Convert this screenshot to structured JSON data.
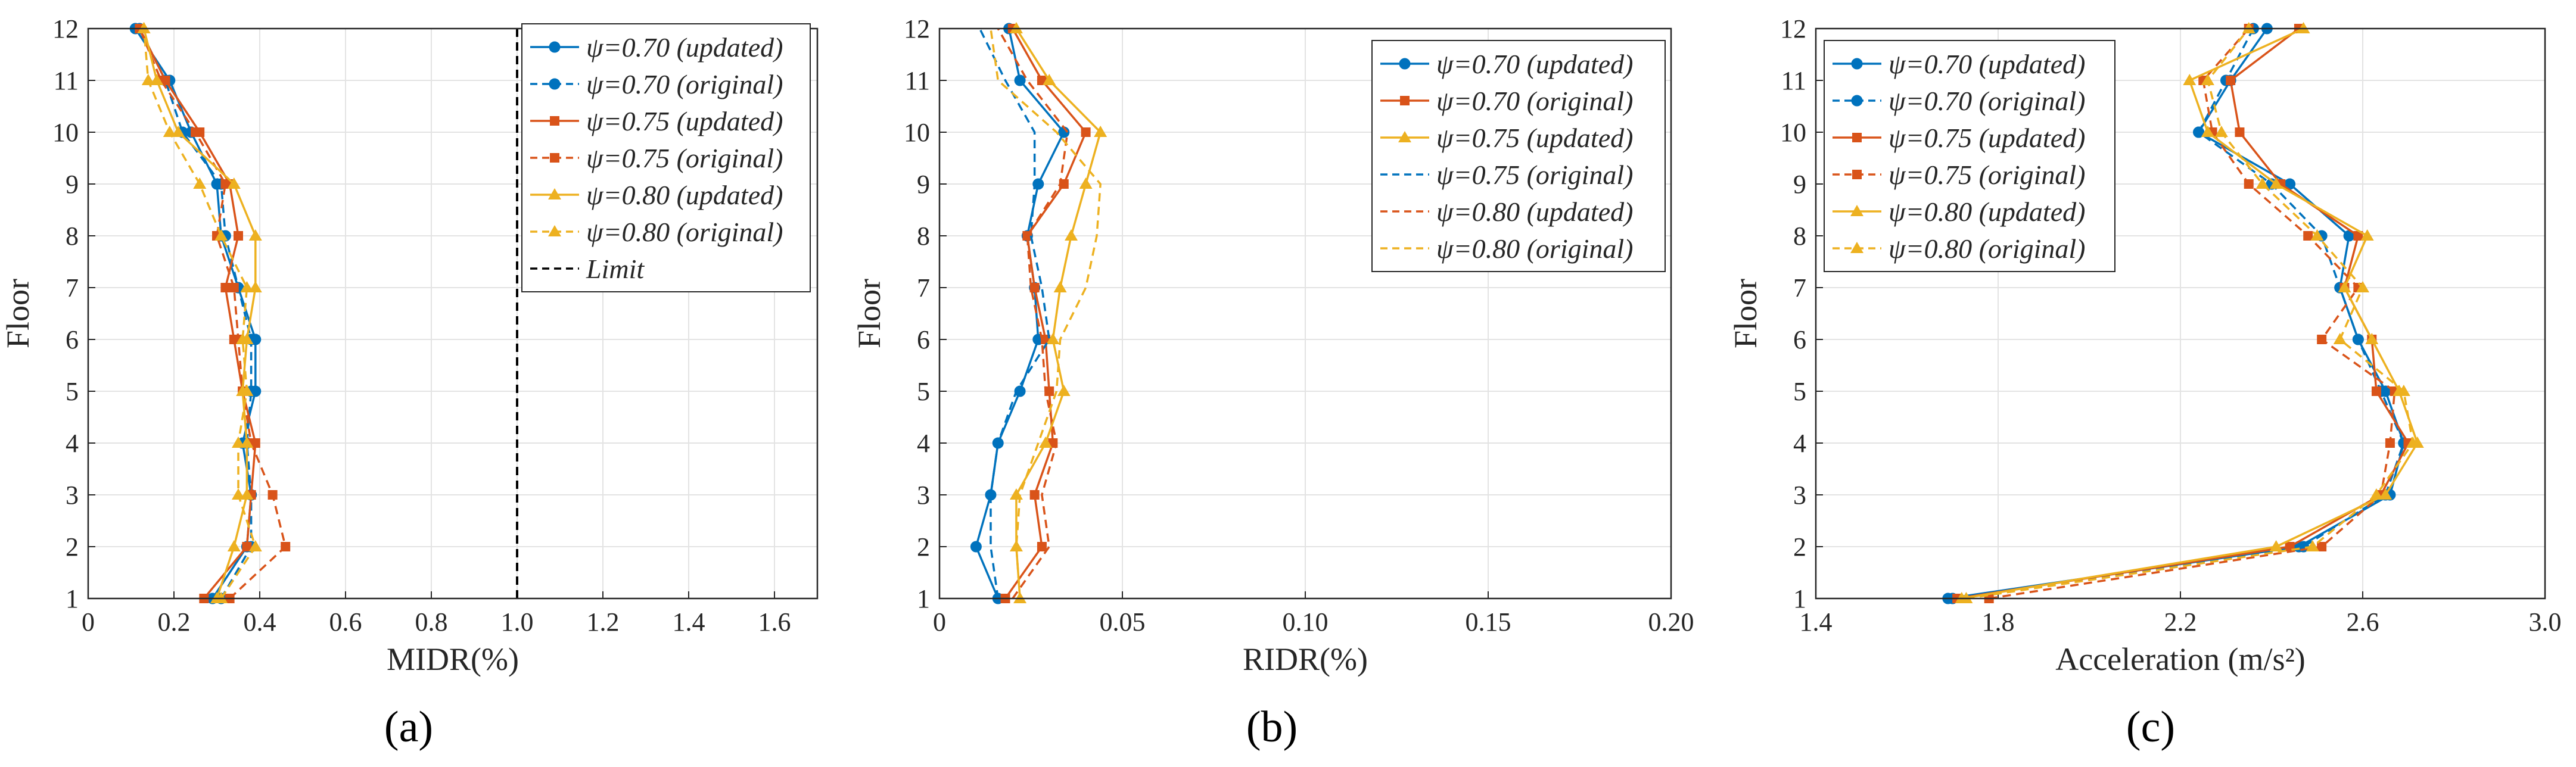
{
  "figure_labels": [
    "(a)",
    "(b)",
    "(c)"
  ],
  "chart_data": [
    {
      "type": "line",
      "panel": "(a)",
      "xlabel": "MIDR(%)",
      "ylabel": "Floor",
      "xlim": [
        0,
        1.7
      ],
      "ylim": [
        1,
        12
      ],
      "xticks": [
        0,
        0.2,
        0.4,
        0.6,
        0.8,
        1.0,
        1.2,
        1.4,
        1.6
      ],
      "xtick_labels": [
        "0",
        "0.2",
        "0.4",
        "0.6",
        "0.8",
        "1.0",
        "1.2",
        "1.4",
        "1.6"
      ],
      "yticks": [
        1,
        2,
        3,
        4,
        5,
        6,
        7,
        8,
        9,
        10,
        11,
        12
      ],
      "ytick_labels": [
        "1",
        "2",
        "3",
        "4",
        "5",
        "6",
        "7",
        "8",
        "9",
        "10",
        "11",
        "12"
      ],
      "grid": true,
      "legend_position": "top-right",
      "series": [
        {
          "name": "ψ=0.70 (updated)",
          "color": "#0072BD",
          "dash": "solid",
          "marker": "circle",
          "x": [
            0.29,
            0.37,
            0.38,
            0.36,
            0.39,
            0.39,
            0.35,
            0.31,
            0.3,
            0.24,
            0.19,
            0.11
          ],
          "y": [
            1,
            2,
            3,
            4,
            5,
            6,
            7,
            8,
            9,
            10,
            11,
            12
          ]
        },
        {
          "name": "ψ=0.70 (original)",
          "color": "#0072BD",
          "dash": "dashed",
          "marker": "circle",
          "x": [
            0.31,
            0.38,
            0.38,
            0.37,
            0.38,
            0.38,
            0.35,
            0.32,
            0.31,
            0.22,
            0.18,
            0.12
          ],
          "y": [
            1,
            2,
            3,
            4,
            5,
            6,
            7,
            8,
            9,
            10,
            11,
            12
          ]
        },
        {
          "name": "ψ=0.75 (updated)",
          "color": "#D95319",
          "dash": "solid",
          "marker": "square",
          "x": [
            0.27,
            0.37,
            0.38,
            0.39,
            0.36,
            0.34,
            0.32,
            0.35,
            0.33,
            0.26,
            0.18,
            0.12
          ],
          "y": [
            1,
            2,
            3,
            4,
            5,
            6,
            7,
            8,
            9,
            10,
            11,
            12
          ]
        },
        {
          "name": "ψ=0.75 (original)",
          "color": "#D95319",
          "dash": "dashed",
          "marker": "square",
          "x": [
            0.33,
            0.46,
            0.43,
            0.38,
            0.36,
            0.35,
            0.34,
            0.3,
            0.32,
            0.25,
            0.17,
            0.12
          ],
          "y": [
            1,
            2,
            3,
            4,
            5,
            6,
            7,
            8,
            9,
            10,
            11,
            12
          ]
        },
        {
          "name": "ψ=0.80 (updated)",
          "color": "#EDB120",
          "dash": "solid",
          "marker": "triangle",
          "x": [
            0.3,
            0.34,
            0.37,
            0.37,
            0.36,
            0.37,
            0.39,
            0.39,
            0.34,
            0.21,
            0.16,
            0.13
          ],
          "y": [
            1,
            2,
            3,
            4,
            5,
            6,
            7,
            8,
            9,
            10,
            11,
            12
          ]
        },
        {
          "name": "ψ=0.80 (original)",
          "color": "#EDB120",
          "dash": "dashed",
          "marker": "triangle",
          "x": [
            0.31,
            0.39,
            0.35,
            0.35,
            0.37,
            0.36,
            0.37,
            0.31,
            0.26,
            0.19,
            0.14,
            0.13
          ],
          "y": [
            1,
            2,
            3,
            4,
            5,
            6,
            7,
            8,
            9,
            10,
            11,
            12
          ]
        },
        {
          "name": "Limit",
          "color": "#000000",
          "dash": "dashed",
          "marker": "none",
          "x": [
            1.0,
            1.0
          ],
          "y": [
            1,
            12
          ]
        }
      ]
    },
    {
      "type": "line",
      "panel": "(b)",
      "xlabel": "RIDR(%)",
      "ylabel": "Floor",
      "xlim": [
        0,
        0.2
      ],
      "ylim": [
        1,
        12
      ],
      "xticks": [
        0,
        0.05,
        0.1,
        0.15,
        0.2
      ],
      "xtick_labels": [
        "0",
        "0.05",
        "0.10",
        "0.15",
        "0.20"
      ],
      "yticks": [
        1,
        2,
        3,
        4,
        5,
        6,
        7,
        8,
        9,
        10,
        11,
        12
      ],
      "ytick_labels": [
        "1",
        "2",
        "3",
        "4",
        "5",
        "6",
        "7",
        "8",
        "9",
        "10",
        "11",
        "12"
      ],
      "grid": true,
      "legend_position": "top-right",
      "series": [
        {
          "name": "ψ=0.70 (updated)",
          "color": "#0072BD",
          "dash": "solid",
          "marker": "circle",
          "x": [
            0.016,
            0.01,
            0.014,
            0.016,
            0.022,
            0.027,
            0.026,
            0.024,
            0.027,
            0.034,
            0.022,
            0.019
          ],
          "y": [
            1,
            2,
            3,
            4,
            5,
            6,
            7,
            8,
            9,
            10,
            11,
            12
          ]
        },
        {
          "name": "ψ=0.70 (original)",
          "color": "#D95319",
          "dash": "solid",
          "marker": "square",
          "x": [
            0.018,
            0.028,
            0.026,
            0.031,
            0.03,
            0.029,
            0.026,
            0.024,
            0.034,
            0.04,
            0.028,
            0.02
          ],
          "y": [
            1,
            2,
            3,
            4,
            5,
            6,
            7,
            8,
            9,
            10,
            11,
            12
          ]
        },
        {
          "name": "ψ=0.75 (updated)",
          "color": "#EDB120",
          "dash": "solid",
          "marker": "triangle",
          "x": [
            0.022,
            0.021,
            0.021,
            0.029,
            0.034,
            0.031,
            0.033,
            0.036,
            0.04,
            0.044,
            0.03,
            0.021
          ],
          "y": [
            1,
            2,
            3,
            4,
            5,
            6,
            7,
            8,
            9,
            10,
            11,
            12
          ]
        },
        {
          "name": "ψ=0.75 (original)",
          "color": "#0072BD",
          "dash": "dashed",
          "marker": "none",
          "x": [
            0.016,
            0.014,
            0.014,
            0.016,
            0.021,
            0.03,
            0.028,
            0.025,
            0.026,
            0.026,
            0.018,
            0.011
          ],
          "y": [
            1,
            2,
            3,
            4,
            5,
            6,
            7,
            8,
            9,
            10,
            11,
            12
          ]
        },
        {
          "name": "ψ=0.80 (updated)",
          "color": "#D95319",
          "dash": "dashed",
          "marker": "none",
          "x": [
            0.02,
            0.03,
            0.028,
            0.032,
            0.029,
            0.028,
            0.025,
            0.024,
            0.033,
            0.035,
            0.024,
            0.016
          ],
          "y": [
            1,
            2,
            3,
            4,
            5,
            6,
            7,
            8,
            9,
            10,
            11,
            12
          ]
        },
        {
          "name": "ψ=0.80 (original)",
          "color": "#EDB120",
          "dash": "dashed",
          "marker": "none",
          "x": [
            0.022,
            0.021,
            0.022,
            0.027,
            0.032,
            0.033,
            0.04,
            0.043,
            0.044,
            0.032,
            0.016,
            0.014
          ],
          "y": [
            1,
            2,
            3,
            4,
            5,
            6,
            7,
            8,
            9,
            10,
            11,
            12
          ]
        }
      ]
    },
    {
      "type": "line",
      "panel": "(c)",
      "xlabel": "Acceleration (m/s²)",
      "ylabel": "Floor",
      "xlim": [
        1.4,
        3.0
      ],
      "ylim": [
        1,
        12
      ],
      "xticks": [
        1.4,
        1.8,
        2.2,
        2.6,
        3.0
      ],
      "xtick_labels": [
        "1.4",
        "1.8",
        "2.2",
        "2.6",
        "3.0"
      ],
      "yticks": [
        1,
        2,
        3,
        4,
        5,
        6,
        7,
        8,
        9,
        10,
        11,
        12
      ],
      "ytick_labels": [
        "1",
        "2",
        "3",
        "4",
        "5",
        "6",
        "7",
        "8",
        "9",
        "10",
        "11",
        "12"
      ],
      "grid": true,
      "legend_position": "top-left",
      "series": [
        {
          "name": "ψ=0.70 (updated)",
          "color": "#0072BD",
          "dash": "solid",
          "marker": "circle",
          "x": [
            1.69,
            2.46,
            2.66,
            2.69,
            2.65,
            2.59,
            2.55,
            2.57,
            2.44,
            2.24,
            2.31,
            2.39
          ],
          "y": [
            1,
            2,
            3,
            4,
            5,
            6,
            7,
            8,
            9,
            10,
            11,
            12
          ]
        },
        {
          "name": "ψ=0.70 (original)",
          "color": "#0072BD",
          "dash": "dashed",
          "marker": "circle",
          "x": [
            1.7,
            2.47,
            2.65,
            2.69,
            2.64,
            2.59,
            2.55,
            2.51,
            2.4,
            2.24,
            2.3,
            2.36
          ],
          "y": [
            1,
            2,
            3,
            4,
            5,
            6,
            7,
            8,
            9,
            10,
            11,
            12
          ]
        },
        {
          "name": "ψ=0.75 (updated)",
          "color": "#D95319",
          "dash": "solid",
          "marker": "square",
          "x": [
            1.71,
            2.44,
            2.64,
            2.7,
            2.63,
            2.62,
            2.56,
            2.59,
            2.42,
            2.33,
            2.31,
            2.46
          ],
          "y": [
            1,
            2,
            3,
            4,
            5,
            6,
            7,
            8,
            9,
            10,
            11,
            12
          ]
        },
        {
          "name": "ψ=0.75 (original)",
          "color": "#D95319",
          "dash": "dashed",
          "marker": "square",
          "x": [
            1.78,
            2.51,
            2.64,
            2.66,
            2.67,
            2.51,
            2.59,
            2.48,
            2.35,
            2.27,
            2.25,
            2.35
          ],
          "y": [
            1,
            2,
            3,
            4,
            5,
            6,
            7,
            8,
            9,
            10,
            11,
            12
          ]
        },
        {
          "name": "ψ=0.80 (updated)",
          "color": "#EDB120",
          "dash": "solid",
          "marker": "triangle",
          "x": [
            1.72,
            2.41,
            2.65,
            2.72,
            2.68,
            2.62,
            2.56,
            2.61,
            2.41,
            2.26,
            2.22,
            2.47
          ],
          "y": [
            1,
            2,
            3,
            4,
            5,
            6,
            7,
            8,
            9,
            10,
            11,
            12
          ]
        },
        {
          "name": "ψ=0.80 (original)",
          "color": "#EDB120",
          "dash": "dashed",
          "marker": "triangle",
          "x": [
            1.73,
            2.49,
            2.63,
            2.71,
            2.69,
            2.55,
            2.6,
            2.5,
            2.38,
            2.29,
            2.26,
            2.35
          ],
          "y": [
            1,
            2,
            3,
            4,
            5,
            6,
            7,
            8,
            9,
            10,
            11,
            12
          ]
        }
      ]
    }
  ]
}
